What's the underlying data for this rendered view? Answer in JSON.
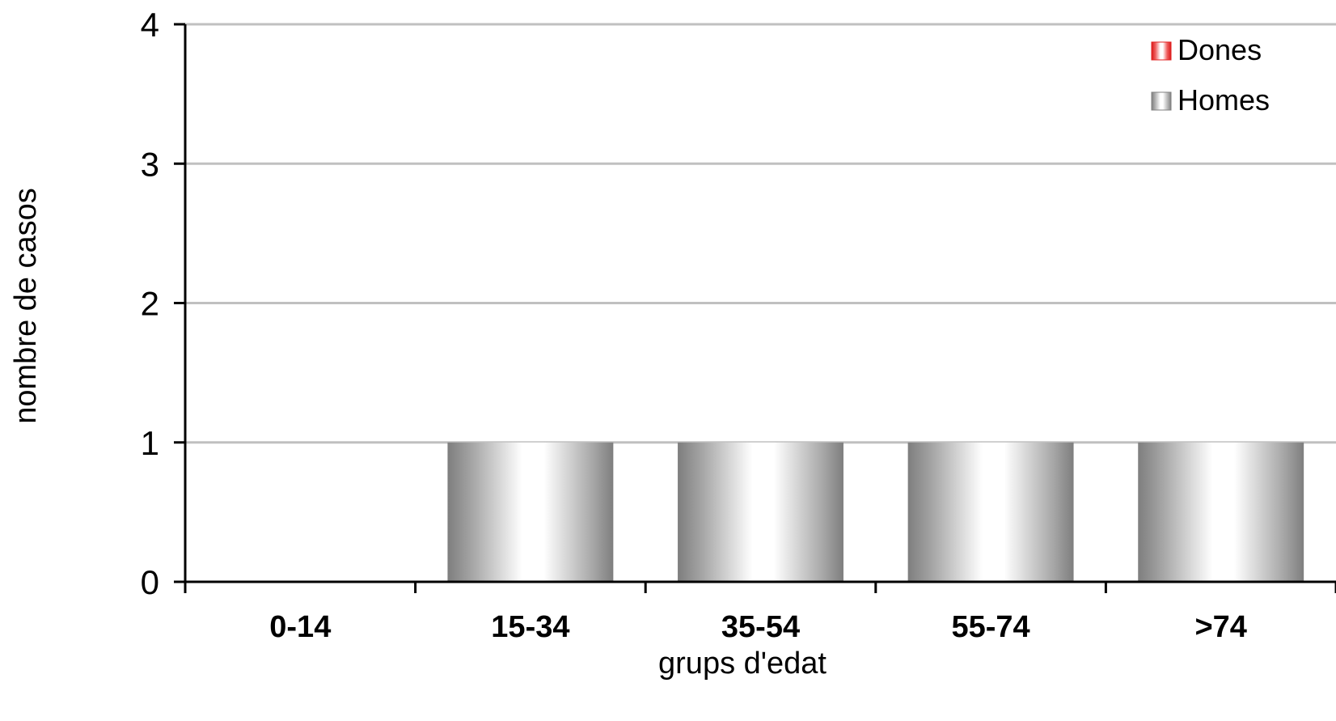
{
  "chart_data": {
    "type": "bar",
    "categories": [
      "0-14",
      "15-34",
      "35-54",
      "55-74",
      ">74"
    ],
    "series": [
      {
        "name": "Dones",
        "values": [
          0,
          0,
          0,
          0,
          0
        ],
        "color": "#e02020"
      },
      {
        "name": "Homes",
        "values": [
          0,
          1,
          1,
          1,
          1
        ],
        "color": "#808080"
      }
    ],
    "xlabel": "grups d'edat",
    "ylabel": "nombre de casos",
    "ylim": [
      0,
      4
    ],
    "yticks": [
      0,
      1,
      2,
      3,
      4
    ],
    "grid": true,
    "legend": "top-right"
  }
}
